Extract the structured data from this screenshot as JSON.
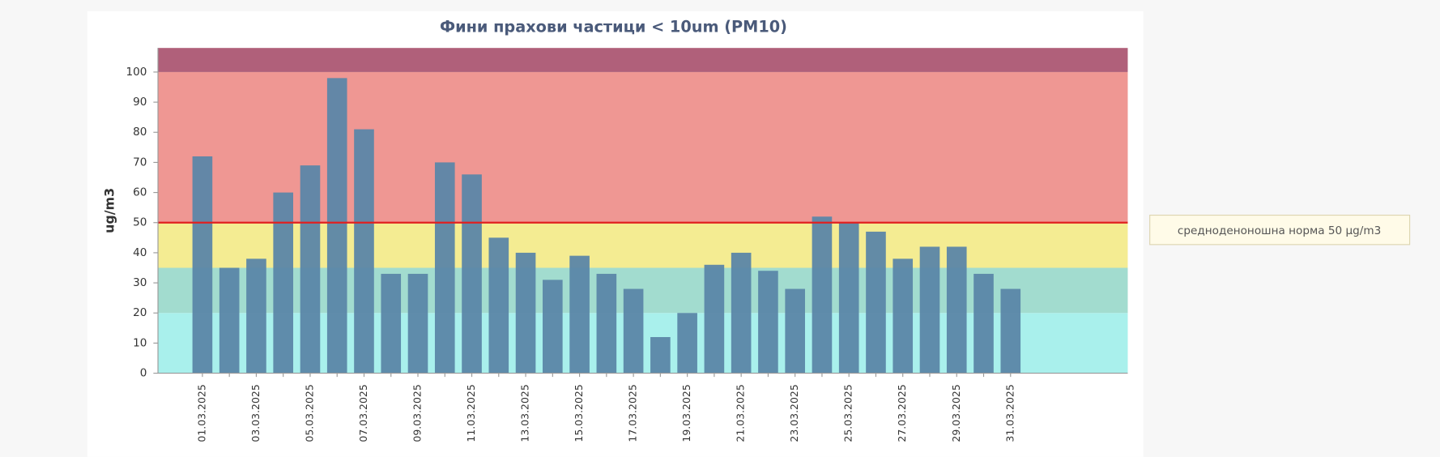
{
  "chart_data": {
    "type": "bar",
    "title": "Фини прахови частици < 10um (PM10)",
    "y_label": "ug/m3",
    "categories": [
      "01.03.2025",
      null,
      "03.03.2025",
      null,
      "05.03.2025",
      null,
      "07.03.2025",
      null,
      "09.03.2025",
      null,
      "11.03.2025",
      null,
      "13.03.2025",
      null,
      "15.03.2025",
      null,
      "17.03.2025",
      null,
      "19.03.2025",
      null,
      "21.03.2025",
      null,
      "23.03.2025",
      null,
      "25.03.2025",
      null,
      "27.03.2025",
      null,
      "29.03.2025",
      null,
      "31.03.2025"
    ],
    "values": [
      72,
      35,
      38,
      60,
      69,
      98,
      81,
      33,
      33,
      70,
      66,
      45,
      40,
      31,
      39,
      33,
      28,
      12,
      20,
      36,
      40,
      34,
      28,
      52,
      50,
      47,
      38,
      42,
      42,
      33,
      28
    ],
    "color": "#5b86a8",
    "ylim": [
      0,
      108
    ],
    "yticks": [
      0,
      10,
      20,
      30,
      40,
      50,
      60,
      70,
      80,
      90,
      100
    ],
    "grid": false,
    "bands": [
      {
        "from": 0,
        "to": 20,
        "color": "#a9f0ec"
      },
      {
        "from": 20,
        "to": 35,
        "color": "#a2dccf"
      },
      {
        "from": 35,
        "to": 50,
        "color": "#f4ec92"
      },
      {
        "from": 50,
        "to": 100,
        "color": "#ef9793"
      },
      {
        "from": 100,
        "to": 108,
        "color": "#b0607a"
      }
    ],
    "threshold": {
      "value": 50,
      "color": "#e02020",
      "label": "средноденоношна норма 50 µg/m3"
    }
  }
}
